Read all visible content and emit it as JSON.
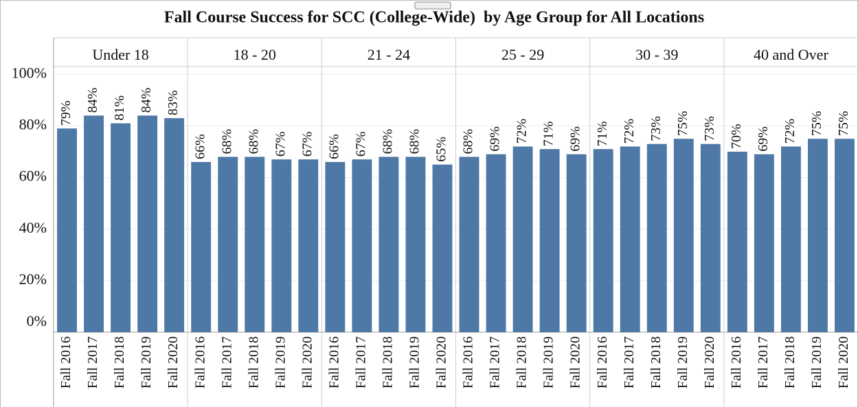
{
  "chart_data": {
    "type": "bar",
    "title": "Fall Course Success for SCC (College-Wide)  by Age Group for All Locations",
    "color": "#4e78a6",
    "ylim": [
      0,
      103
    ],
    "yticks": [
      {
        "value": 0,
        "label": "0%"
      },
      {
        "value": 20,
        "label": "20%"
      },
      {
        "value": 40,
        "label": "40%"
      },
      {
        "value": 60,
        "label": "60%"
      },
      {
        "value": 80,
        "label": "80%"
      },
      {
        "value": 100,
        "label": "100%"
      }
    ],
    "grid": true,
    "panels": [
      {
        "name": "Under 18",
        "categories": [
          "Fall 2016",
          "Fall 2017",
          "Fall 2018",
          "Fall 2019",
          "Fall 2020"
        ],
        "values": [
          79,
          84,
          81,
          84,
          83
        ],
        "value_labels": [
          "79%",
          "84%",
          "81%",
          "84%",
          "83%"
        ]
      },
      {
        "name": "18 - 20",
        "categories": [
          "Fall 2016",
          "Fall 2017",
          "Fall 2018",
          "Fall 2019",
          "Fall 2020"
        ],
        "values": [
          66,
          68,
          68,
          67,
          67
        ],
        "value_labels": [
          "66%",
          "68%",
          "68%",
          "67%",
          "67%"
        ]
      },
      {
        "name": "21 - 24",
        "categories": [
          "Fall 2016",
          "Fall 2017",
          "Fall 2018",
          "Fall 2019",
          "Fall 2020"
        ],
        "values": [
          66,
          67,
          68,
          68,
          65
        ],
        "value_labels": [
          "66%",
          "67%",
          "68%",
          "68%",
          "65%"
        ]
      },
      {
        "name": "25 - 29",
        "categories": [
          "Fall 2016",
          "Fall 2017",
          "Fall 2018",
          "Fall 2019",
          "Fall 2020"
        ],
        "values": [
          68,
          69,
          72,
          71,
          69
        ],
        "value_labels": [
          "68%",
          "69%",
          "72%",
          "71%",
          "69%"
        ]
      },
      {
        "name": "30 - 39",
        "categories": [
          "Fall 2016",
          "Fall 2017",
          "Fall 2018",
          "Fall 2019",
          "Fall 2020"
        ],
        "values": [
          71,
          72,
          73,
          75,
          73
        ],
        "value_labels": [
          "71%",
          "72%",
          "73%",
          "75%",
          "73%"
        ]
      },
      {
        "name": "40 and Over",
        "categories": [
          "Fall 2016",
          "Fall 2017",
          "Fall 2018",
          "Fall 2019",
          "Fall 2020"
        ],
        "values": [
          70,
          69,
          72,
          75,
          75
        ],
        "value_labels": [
          "70%",
          "69%",
          "72%",
          "75%",
          "75%"
        ]
      }
    ]
  }
}
